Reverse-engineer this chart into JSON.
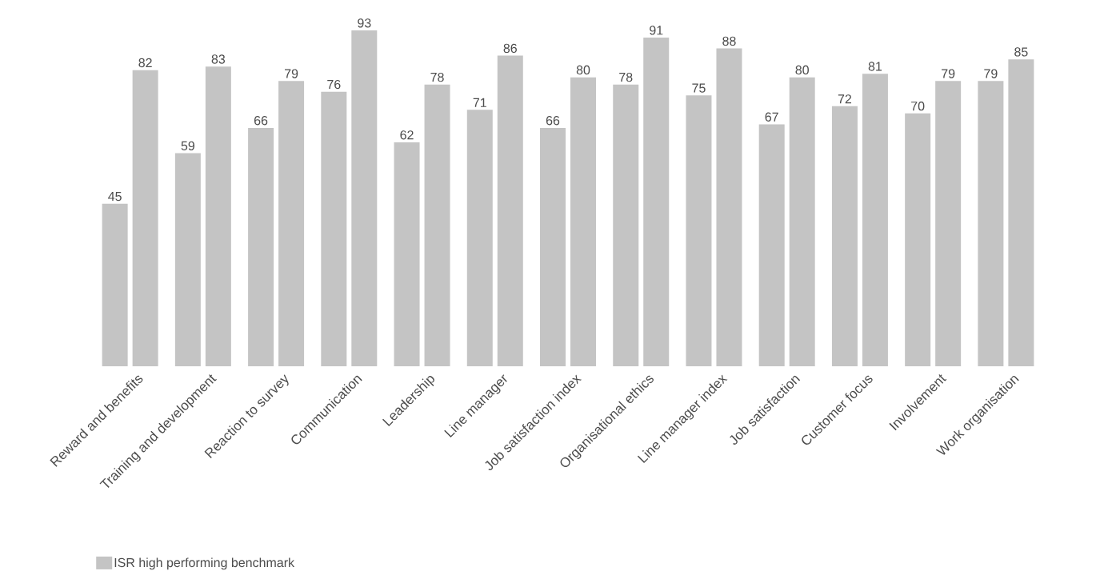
{
  "chart_data": {
    "type": "bar",
    "categories": [
      "Reward and benefits",
      "Training and development",
      "Reaction to survey",
      "Communication",
      "Leadership",
      "Line manager",
      "Job satisfaction index",
      "Organisational ethics",
      "Line manager index",
      "Job satisfaction",
      "Customer focus",
      "Involvement",
      "Work organisation"
    ],
    "series": [
      {
        "color": "#c4c4c4",
        "values": [
          45,
          59,
          66,
          76,
          62,
          71,
          66,
          78,
          75,
          67,
          72,
          70,
          79
        ]
      },
      {
        "name": "ISR high performing benchmark",
        "color": "#c4c4c4",
        "values": [
          82,
          83,
          79,
          93,
          78,
          86,
          80,
          91,
          88,
          80,
          81,
          79,
          85
        ]
      }
    ],
    "data_labels": true,
    "legend": "bottom left"
  }
}
